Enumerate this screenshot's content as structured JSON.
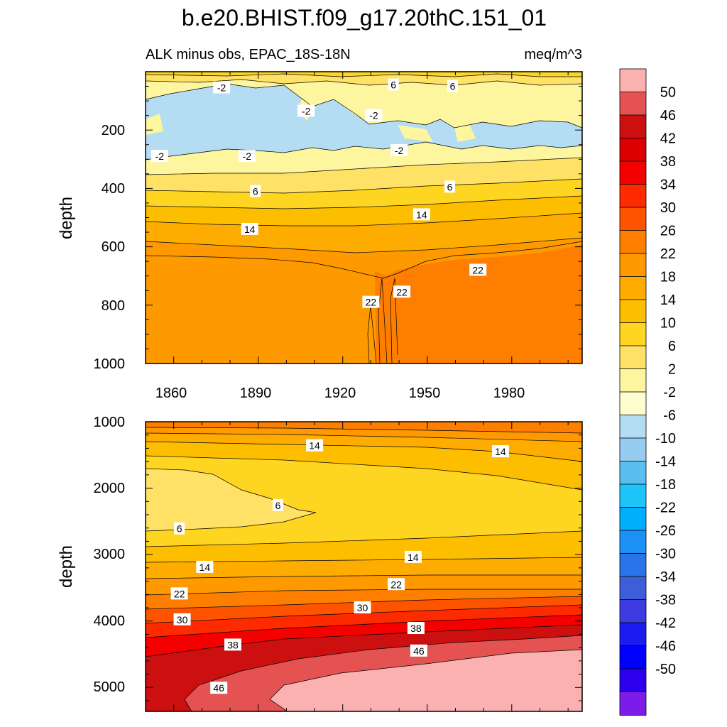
{
  "chart_data": {
    "type": "contour",
    "title": "b.e20.BHIST.f09_g17.20thC.151_01",
    "subtitle_left": "ALK minus obs, EPAC_18S-18N",
    "subtitle_right": "meq/m^3",
    "colorbar": {
      "labels": [
        "50",
        "46",
        "42",
        "38",
        "34",
        "30",
        "26",
        "22",
        "18",
        "14",
        "10",
        "6",
        "2",
        "-2",
        "-6",
        "-10",
        "-14",
        "-18",
        "-22",
        "-26",
        "-30",
        "-34",
        "-38",
        "-42",
        "-46",
        "-50"
      ],
      "colors": [
        "#fcb1b1",
        "#e45252",
        "#cc1010",
        "#dc0000",
        "#f40000",
        "#fe2a00",
        "#fe5400",
        "#fe7e00",
        "#fe9a00",
        "#feac00",
        "#febe00",
        "#fed520",
        "#fee165",
        "#fef59f",
        "#fefdd0",
        "#b4dcf2",
        "#96cdee",
        "#5abff0",
        "#1ec4fa",
        "#00aefe",
        "#1c90f5",
        "#2874e8",
        "#3c5ed8",
        "#3c3ce0",
        "#1c1cf0",
        "#0000fe",
        "#2c00ee",
        "#7c1ce8"
      ]
    },
    "x_tick_labels": [
      "1860",
      "1890",
      "1920",
      "1950",
      "1980"
    ],
    "top_panel": {
      "ylabel": "depth",
      "xlim": [
        1850,
        2005
      ],
      "ylim": [
        0,
        1000
      ],
      "y_tick_labels": [
        "200",
        "400",
        "600",
        "800",
        "1000"
      ],
      "contour_labels": [
        {
          "text": "-2",
          "x": 1877,
          "y": 55
        },
        {
          "text": "6",
          "x": 1938,
          "y": 45
        },
        {
          "text": "6",
          "x": 1959,
          "y": 50
        },
        {
          "text": "-2",
          "x": 1907,
          "y": 135
        },
        {
          "text": "-2",
          "x": 1931,
          "y": 150
        },
        {
          "text": "-2",
          "x": 1855,
          "y": 290
        },
        {
          "text": "-2",
          "x": 1886,
          "y": 290
        },
        {
          "text": "-2",
          "x": 1940,
          "y": 270
        },
        {
          "text": "6",
          "x": 1889,
          "y": 410
        },
        {
          "text": "6",
          "x": 1958,
          "y": 395
        },
        {
          "text": "14",
          "x": 1948,
          "y": 490
        },
        {
          "text": "14",
          "x": 1887,
          "y": 540
        },
        {
          "text": "22",
          "x": 1968,
          "y": 680
        },
        {
          "text": "22",
          "x": 1941,
          "y": 755
        },
        {
          "text": "22",
          "x": 1930,
          "y": 790
        }
      ]
    },
    "bottom_panel": {
      "ylabel": "depth",
      "xlim": [
        1850,
        2005
      ],
      "ylim": [
        1000,
        5360
      ],
      "y_tick_labels": [
        "1000",
        "2000",
        "3000",
        "4000",
        "5000"
      ],
      "contour_labels": [
        {
          "text": "14",
          "x": 1910,
          "y": 1360
        },
        {
          "text": "14",
          "x": 1976,
          "y": 1450
        },
        {
          "text": "6",
          "x": 1897,
          "y": 2260
        },
        {
          "text": "6",
          "x": 1862,
          "y": 2610
        },
        {
          "text": "14",
          "x": 1945,
          "y": 3040
        },
        {
          "text": "14",
          "x": 1871,
          "y": 3190
        },
        {
          "text": "22",
          "x": 1939,
          "y": 3450
        },
        {
          "text": "22",
          "x": 1862,
          "y": 3590
        },
        {
          "text": "30",
          "x": 1927,
          "y": 3800
        },
        {
          "text": "30",
          "x": 1863,
          "y": 3980
        },
        {
          "text": "38",
          "x": 1946,
          "y": 4110
        },
        {
          "text": "38",
          "x": 1881,
          "y": 4360
        },
        {
          "text": "46",
          "x": 1947,
          "y": 4450
        },
        {
          "text": "46",
          "x": 1876,
          "y": 5010
        }
      ]
    }
  }
}
